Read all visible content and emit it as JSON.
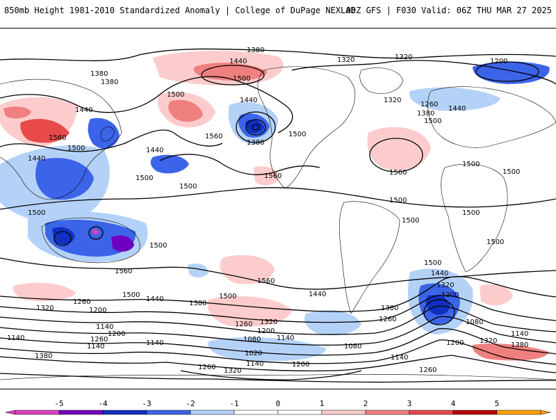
{
  "header": {
    "left": "850mb Height 1981-2010 Standardized Anomaly | College of DuPage NEXLAB",
    "right": "00Z GFS | F030 Valid: 06Z THU MAR 27 2025"
  },
  "colors": {
    "neg5": "#e040c0",
    "neg4": "#7000c0",
    "neg3": "#1030c0",
    "neg2": "#3c64e8",
    "neg1": "#b4d2f8",
    "pos1": "#fccccc",
    "pos2": "#f08080",
    "pos3": "#e84a4a",
    "pos4": "#b40000",
    "pos5": "#ffa000",
    "contour": "#000000",
    "coast": "#000000"
  },
  "colorbar": {
    "ticks": [
      "-5",
      "-4",
      "-3",
      "-2",
      "-1",
      "0",
      "1",
      "2",
      "3",
      "4",
      "5"
    ]
  },
  "contour_labels": [
    "1380",
    "1440",
    "1500",
    "1560",
    "1320",
    "1260",
    "1200",
    "1140",
    "1080",
    "1020"
  ],
  "anomalies": [
    {
      "level": "pos2",
      "region": "north-pacific-aleutian"
    },
    {
      "level": "pos1",
      "region": "east-asia-siberia"
    },
    {
      "level": "neg3",
      "region": "gulf-of-alaska-low"
    },
    {
      "level": "neg2",
      "region": "southeast-asia-indonesia"
    },
    {
      "level": "neg4",
      "region": "australia-lows"
    },
    {
      "level": "neg3",
      "region": "south-atlantic-low"
    },
    {
      "level": "pos1",
      "region": "north-atlantic-ridge"
    },
    {
      "level": "neg2",
      "region": "north-europe-low"
    }
  ]
}
